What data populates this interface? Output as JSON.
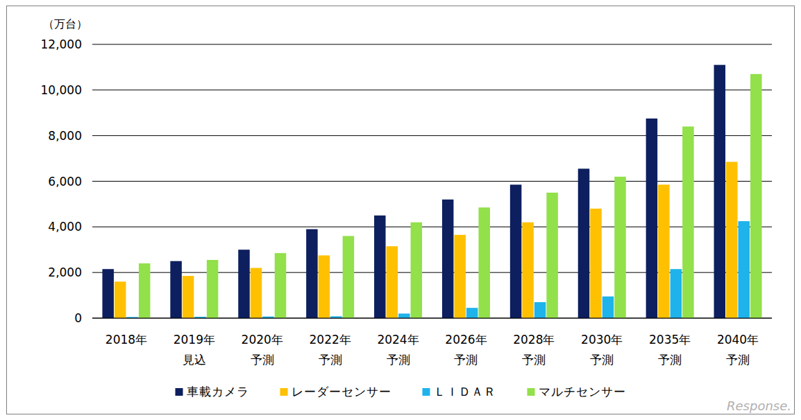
{
  "chart_data": {
    "type": "bar",
    "y_label": "（万台）",
    "watermark": "Response.",
    "categories": [
      "2018年",
      "2019年\n見込",
      "2020年\n予測",
      "2022年\n予測",
      "2024年\n予測",
      "2026年\n予測",
      "2028年\n予測",
      "2030年\n予測",
      "2035年\n予測",
      "2040年\n予測"
    ],
    "series": [
      {
        "name": "車載カメラ",
        "color": "#0d1f5e",
        "values": [
          2150,
          2500,
          3000,
          3900,
          4500,
          5200,
          5850,
          6550,
          8750,
          11100
        ]
      },
      {
        "name": "レーダーセンサー",
        "color": "#ffc000",
        "values": [
          1600,
          1850,
          2200,
          2750,
          3150,
          3650,
          4200,
          4800,
          5850,
          6850
        ]
      },
      {
        "name": "ＬＩＤＡＲ",
        "color": "#1eb3ea",
        "values": [
          50,
          60,
          70,
          80,
          200,
          450,
          700,
          950,
          2150,
          4250
        ]
      },
      {
        "name": "マルチセンサー",
        "color": "#92e04a",
        "values": [
          2400,
          2550,
          2850,
          3600,
          4200,
          4850,
          5500,
          6200,
          8400,
          10700
        ]
      }
    ],
    "ylim": [
      0,
      12000
    ],
    "yticks": [
      0,
      {
        "value": 2000,
        "label": "2,000"
      },
      {
        "value": 4000,
        "label": "4,000"
      },
      {
        "value": 6000,
        "label": "6,000"
      },
      {
        "value": 8000,
        "label": "8,000"
      },
      {
        "value": 10000,
        "label": "10,000"
      },
      {
        "value": 12000,
        "label": "12,000"
      }
    ],
    "grid": true,
    "legend": "bottom"
  }
}
